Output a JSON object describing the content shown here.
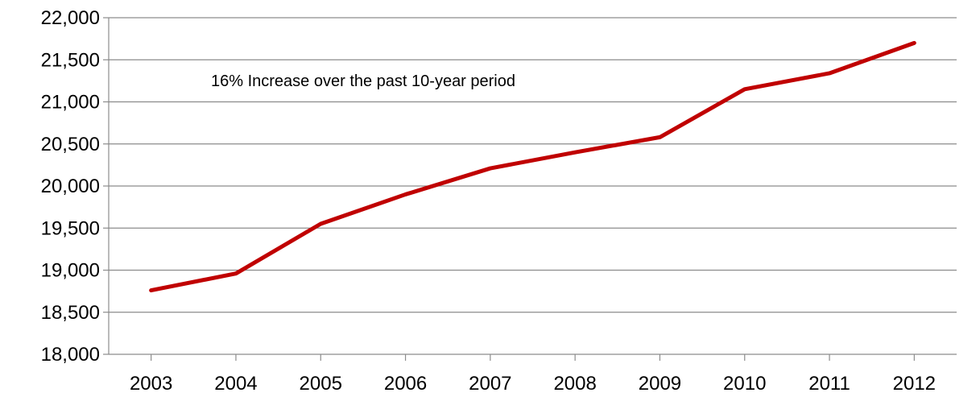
{
  "chart_data": {
    "type": "line",
    "title": "",
    "xlabel": "",
    "ylabel": "",
    "x": [
      "2003",
      "2004",
      "2005",
      "2006",
      "2007",
      "2008",
      "2009",
      "2010",
      "2011",
      "2012"
    ],
    "series": [
      {
        "values": [
          18760,
          18960,
          19550,
          19900,
          20210,
          20400,
          20580,
          21150,
          21340,
          21700
        ],
        "color": "#c00000"
      }
    ],
    "ylim": [
      18000,
      22000
    ],
    "yticks": [
      18000,
      18500,
      19000,
      19500,
      20000,
      20500,
      21000,
      21500,
      22000
    ],
    "ytick_labels": [
      "18,000",
      "18,500",
      "19,000",
      "19,500",
      "20,000",
      "20,500",
      "21,000",
      "21,500",
      "22,000"
    ],
    "annotation": "16% Increase over the past 10-year period",
    "grid": true,
    "legend": "none"
  }
}
